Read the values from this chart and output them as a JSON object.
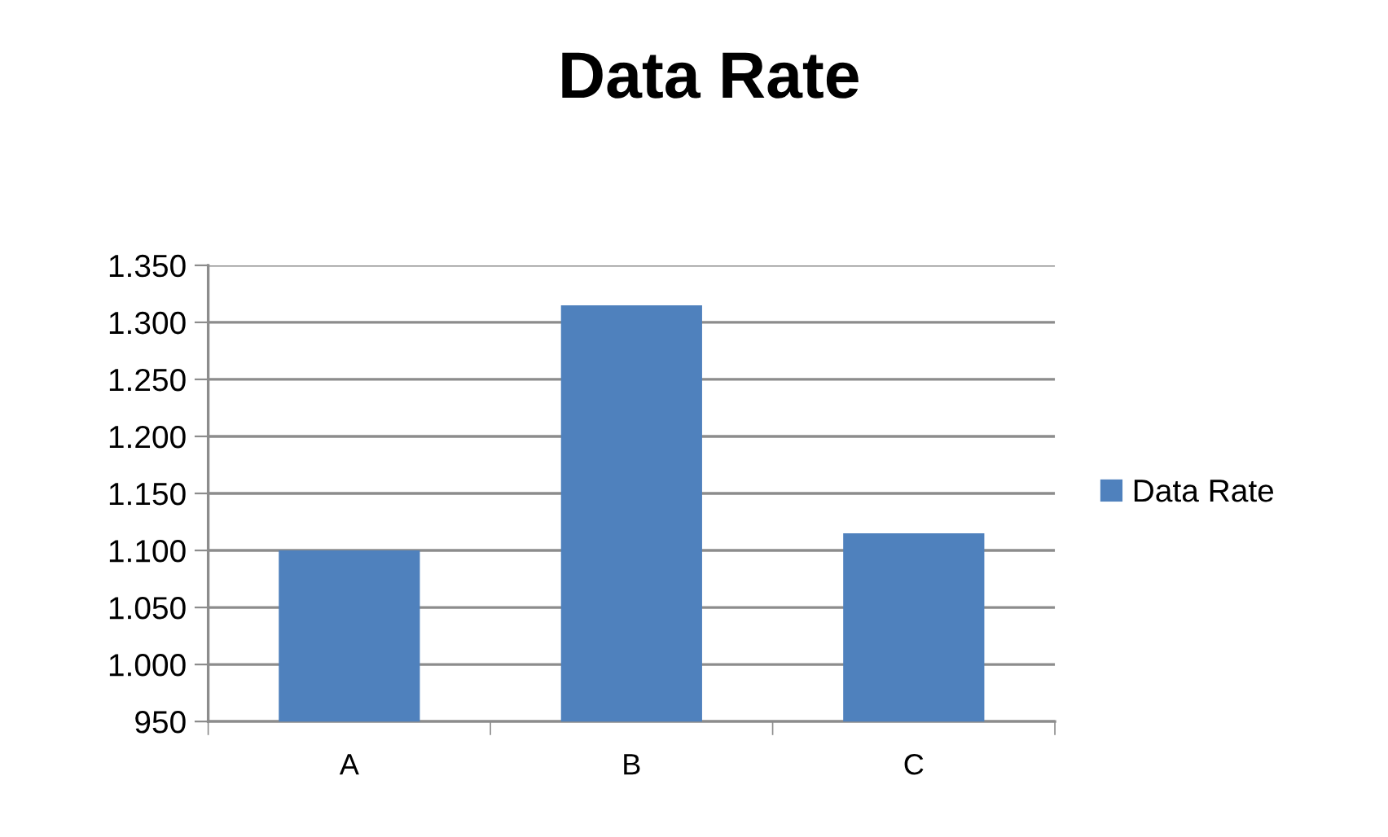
{
  "chart_data": {
    "type": "bar",
    "title": "Data Rate",
    "categories": [
      "A",
      "B",
      "C"
    ],
    "series": [
      {
        "name": "Data Rate",
        "color": "#4f81bd",
        "values": [
          1100,
          1315,
          1115
        ]
      }
    ],
    "ylim": [
      950,
      1350
    ],
    "yticks": [
      950,
      {
        "value": 1000,
        "label": "1.000"
      },
      {
        "value": 1050,
        "label": "1.050"
      },
      {
        "value": 1100,
        "label": "1.100"
      },
      {
        "value": 1150,
        "label": "1.150"
      },
      {
        "value": 1200,
        "label": "1.200"
      },
      {
        "value": 1250,
        "label": "1.250"
      },
      {
        "value": 1300,
        "label": "1.300"
      },
      {
        "value": 1350,
        "label": "1.350"
      }
    ],
    "grid": "y",
    "legend": "right"
  }
}
